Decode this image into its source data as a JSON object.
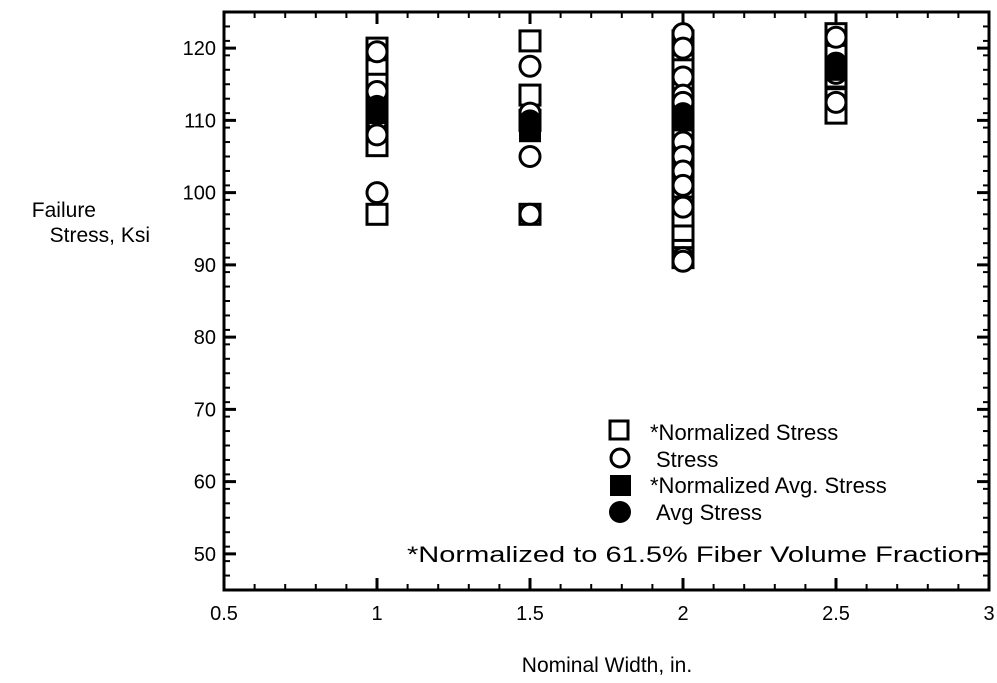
{
  "chart_data": {
    "type": "scatter",
    "title": "",
    "xlabel": "Nominal Width, in.",
    "ylabel_lines": [
      "Failure",
      "Stress, Ksi"
    ],
    "xlim": [
      0.5,
      3
    ],
    "ylim": [
      45,
      125
    ],
    "x_ticks": [
      0.5,
      1,
      1.5,
      2,
      2.5,
      3
    ],
    "x_tick_labels": [
      "0.5",
      "1",
      "1.5",
      "2",
      "2.5",
      "3"
    ],
    "y_ticks": [
      50,
      60,
      70,
      80,
      90,
      100,
      110,
      120
    ],
    "y_tick_labels": [
      "50",
      "60",
      "70",
      "80",
      "90",
      "100",
      "110",
      "120"
    ],
    "grid": false,
    "legend_position": "bottom-right",
    "annotation": "*Normalized to 61.5% Fiber Volume Fraction",
    "series": [
      {
        "name": "*Normalized Stress",
        "marker": "open-square",
        "points": [
          {
            "x": 1,
            "y": 120
          },
          {
            "x": 1,
            "y": 117
          },
          {
            "x": 1,
            "y": 115
          },
          {
            "x": 1,
            "y": 112
          },
          {
            "x": 1,
            "y": 110
          },
          {
            "x": 1,
            "y": 108
          },
          {
            "x": 1,
            "y": 106.5
          },
          {
            "x": 1,
            "y": 97
          },
          {
            "x": 1.5,
            "y": 121
          },
          {
            "x": 1.5,
            "y": 113.5
          },
          {
            "x": 1.5,
            "y": 110
          },
          {
            "x": 1.5,
            "y": 97
          },
          {
            "x": 2,
            "y": 121
          },
          {
            "x": 2,
            "y": 119
          },
          {
            "x": 2,
            "y": 117
          },
          {
            "x": 2,
            "y": 115
          },
          {
            "x": 2,
            "y": 112
          },
          {
            "x": 2,
            "y": 110
          },
          {
            "x": 2,
            "y": 108
          },
          {
            "x": 2,
            "y": 106
          },
          {
            "x": 2,
            "y": 104
          },
          {
            "x": 2,
            "y": 102
          },
          {
            "x": 2,
            "y": 100
          },
          {
            "x": 2,
            "y": 98
          },
          {
            "x": 2,
            "y": 96
          },
          {
            "x": 2,
            "y": 94
          },
          {
            "x": 2,
            "y": 92
          },
          {
            "x": 2,
            "y": 91
          },
          {
            "x": 2.5,
            "y": 122
          },
          {
            "x": 2.5,
            "y": 119
          },
          {
            "x": 2.5,
            "y": 116
          },
          {
            "x": 2.5,
            "y": 113
          },
          {
            "x": 2.5,
            "y": 111
          }
        ]
      },
      {
        "name": "Stress",
        "marker": "open-circle",
        "points": [
          {
            "x": 1,
            "y": 119.5
          },
          {
            "x": 1,
            "y": 114
          },
          {
            "x": 1,
            "y": 110
          },
          {
            "x": 1,
            "y": 108
          },
          {
            "x": 1,
            "y": 100
          },
          {
            "x": 1.5,
            "y": 117.5
          },
          {
            "x": 1.5,
            "y": 111
          },
          {
            "x": 1.5,
            "y": 105
          },
          {
            "x": 1.5,
            "y": 97
          },
          {
            "x": 2,
            "y": 122
          },
          {
            "x": 2,
            "y": 120
          },
          {
            "x": 2,
            "y": 116
          },
          {
            "x": 2,
            "y": 113.5
          },
          {
            "x": 2,
            "y": 112.5
          },
          {
            "x": 2,
            "y": 107
          },
          {
            "x": 2,
            "y": 105
          },
          {
            "x": 2,
            "y": 103
          },
          {
            "x": 2,
            "y": 101
          },
          {
            "x": 2,
            "y": 98
          },
          {
            "x": 2,
            "y": 91
          },
          {
            "x": 2,
            "y": 90.5
          },
          {
            "x": 2.5,
            "y": 121.5
          },
          {
            "x": 2.5,
            "y": 116.5
          },
          {
            "x": 2.5,
            "y": 112.5
          }
        ]
      },
      {
        "name": "*Normalized Avg. Stress",
        "marker": "filled-square",
        "points": [
          {
            "x": 1,
            "y": 111
          },
          {
            "x": 1.5,
            "y": 108.5
          },
          {
            "x": 2,
            "y": 110
          },
          {
            "x": 2.5,
            "y": 117
          }
        ]
      },
      {
        "name": "Avg Stress",
        "marker": "filled-circle",
        "points": [
          {
            "x": 1,
            "y": 112
          },
          {
            "x": 1.5,
            "y": 110
          },
          {
            "x": 2,
            "y": 111
          },
          {
            "x": 2.5,
            "y": 118
          }
        ]
      }
    ]
  }
}
